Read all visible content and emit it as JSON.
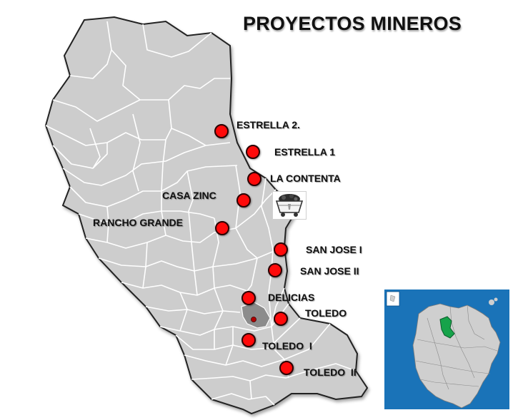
{
  "title": "PROYECTOS MINEROS",
  "projects": [
    {
      "name": "ESTRELLA 2."
    },
    {
      "name": "ESTRELLA 1"
    },
    {
      "name": "LA CONTENTA"
    },
    {
      "name": "CASA ZINC"
    },
    {
      "name": "RANCHO GRANDE"
    },
    {
      "name": "SAN JOSE I"
    },
    {
      "name": "SAN JOSE II"
    },
    {
      "name": "DELICIAS"
    },
    {
      "name": "TOLEDO"
    },
    {
      "name": "TOLEDO  I"
    },
    {
      "name": "TOLEDO  II"
    }
  ],
  "colors": {
    "land": "#cdcdcd",
    "border": "#ffffff",
    "outline": "#222222",
    "highlight": "#8c8c8c",
    "marker": "#ff0a0a",
    "sea": "#1a73b8",
    "region_highlight": "#16a34a"
  },
  "icons": {
    "marker": "red-circle-marker",
    "mine": "mine-cart-icon"
  }
}
